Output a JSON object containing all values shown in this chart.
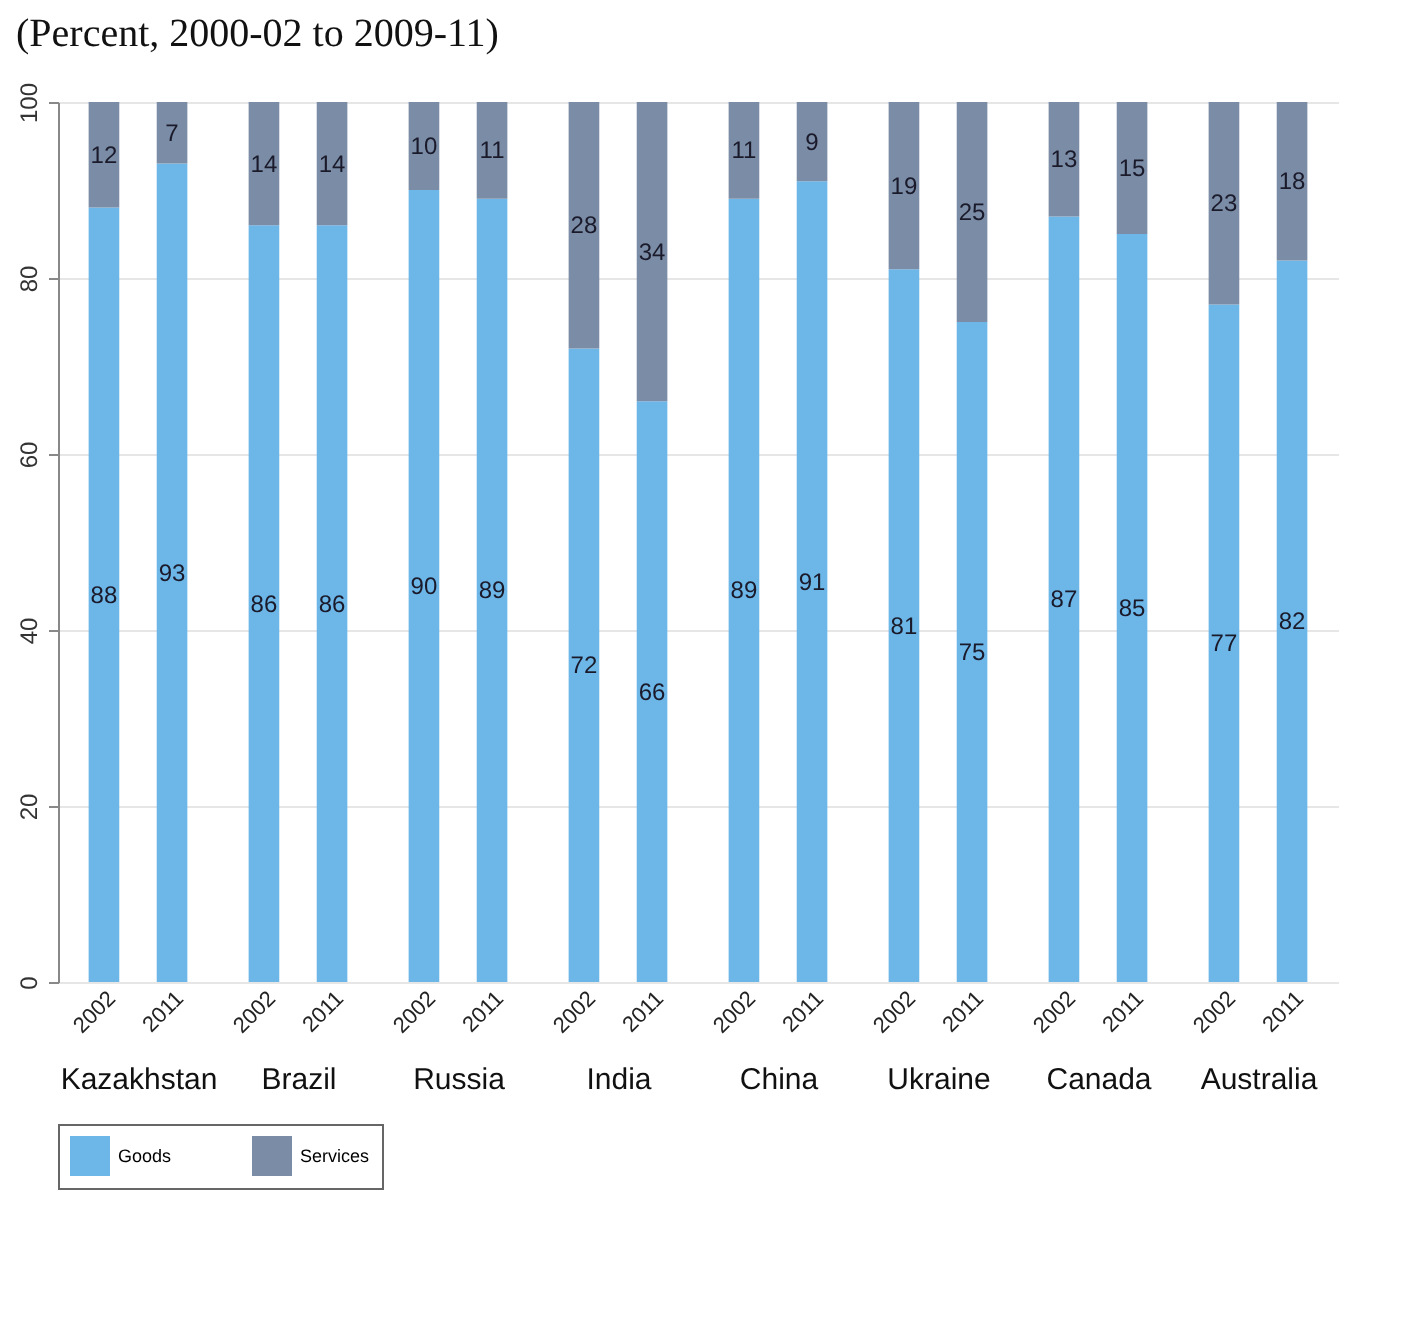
{
  "chart_data": [
    {
      "type": "bar",
      "title": "(Percent, 2000-02 to 2009-11)",
      "xlabel": "Kazakhstan",
      "categories": [
        "2002",
        "2011"
      ],
      "stacked": true,
      "data_labels": true,
      "ylim": [
        0,
        100
      ],
      "yticks": [
        0,
        20,
        40,
        60,
        80,
        100
      ],
      "grid": "y",
      "legend": "bottom",
      "series": [
        {
          "name": "Goods",
          "color": "#6db6e8",
          "values": [
            88,
            93
          ]
        },
        {
          "name": "Services",
          "color": "#7a8ca6",
          "values": [
            12,
            7
          ]
        }
      ]
    },
    {
      "type": "bar",
      "xlabel": "Brazil",
      "categories": [
        "2002",
        "2011"
      ],
      "stacked": true,
      "data_labels": true,
      "ylim": [
        0,
        100
      ],
      "yticks": [
        0,
        20,
        40,
        60,
        80,
        100
      ],
      "grid": "y",
      "tick_labels": "x",
      "series": [
        {
          "name": "Goods",
          "color": "#6db6e8",
          "values": [
            86,
            86
          ]
        },
        {
          "name": "Services",
          "color": "#7a8ca6",
          "values": [
            14,
            14
          ]
        }
      ]
    },
    {
      "type": "bar",
      "xlabel": "Russia",
      "categories": [
        "2002",
        "2011"
      ],
      "stacked": true,
      "data_labels": true,
      "ylim": [
        0,
        100
      ],
      "yticks": [
        0,
        20,
        40,
        60,
        80,
        100
      ],
      "grid": "y",
      "tick_labels": "x",
      "series": [
        {
          "name": "Goods",
          "color": "#6db6e8",
          "values": [
            90,
            89
          ]
        },
        {
          "name": "Services",
          "color": "#7a8ca6",
          "values": [
            10,
            11
          ]
        }
      ]
    },
    {
      "type": "bar",
      "xlabel": "India",
      "categories": [
        "2002",
        "2011"
      ],
      "stacked": true,
      "data_labels": true,
      "ylim": [
        0,
        100
      ],
      "yticks": [
        0,
        20,
        40,
        60,
        80,
        100
      ],
      "grid": "y",
      "tick_labels": "x",
      "series": [
        {
          "name": "Goods",
          "color": "#6db6e8",
          "values": [
            72,
            66
          ]
        },
        {
          "name": "Services",
          "color": "#7a8ca6",
          "values": [
            28,
            34
          ]
        }
      ]
    },
    {
      "type": "bar",
      "xlabel": "China",
      "categories": [
        "2002",
        "2011"
      ],
      "stacked": true,
      "data_labels": true,
      "ylim": [
        0,
        100
      ],
      "yticks": [
        0,
        20,
        40,
        60,
        80,
        100
      ],
      "grid": "y",
      "tick_labels": "x",
      "series": [
        {
          "name": "Goods",
          "color": "#6db6e8",
          "values": [
            89,
            91
          ]
        },
        {
          "name": "Services",
          "color": "#7a8ca6",
          "values": [
            11,
            9
          ]
        }
      ]
    },
    {
      "type": "bar",
      "xlabel": "Ukraine",
      "categories": [
        "2002",
        "2011"
      ],
      "stacked": true,
      "data_labels": true,
      "ylim": [
        0,
        100
      ],
      "yticks": [
        0,
        20,
        40,
        60,
        80,
        100
      ],
      "grid": "y",
      "tick_labels": "x",
      "series": [
        {
          "name": "Goods",
          "color": "#6db6e8",
          "values": [
            81,
            75
          ]
        },
        {
          "name": "Services",
          "color": "#7a8ca6",
          "values": [
            19,
            25
          ]
        }
      ]
    },
    {
      "type": "bar",
      "xlabel": "Canada",
      "categories": [
        "2002",
        "2011"
      ],
      "stacked": true,
      "data_labels": true,
      "ylim": [
        0,
        100
      ],
      "yticks": [
        0,
        20,
        40,
        60,
        80,
        100
      ],
      "grid": "y",
      "tick_labels": "x",
      "series": [
        {
          "name": "Goods",
          "color": "#6db6e8",
          "values": [
            87,
            85
          ]
        },
        {
          "name": "Services",
          "color": "#7a8ca6",
          "values": [
            13,
            15
          ]
        }
      ]
    },
    {
      "type": "bar",
      "xlabel": "Australia",
      "categories": [
        "2002",
        "2011"
      ],
      "stacked": true,
      "data_labels": true,
      "ylim": [
        0,
        100
      ],
      "yticks": [
        0,
        20,
        40,
        60,
        80,
        100
      ],
      "grid": "y",
      "tick_labels": "x",
      "series": [
        {
          "name": "Goods",
          "color": "#6db6e8",
          "values": [
            77,
            82
          ]
        },
        {
          "name": "Services",
          "color": "#7a8ca6",
          "values": [
            23,
            18
          ]
        }
      ]
    }
  ]
}
